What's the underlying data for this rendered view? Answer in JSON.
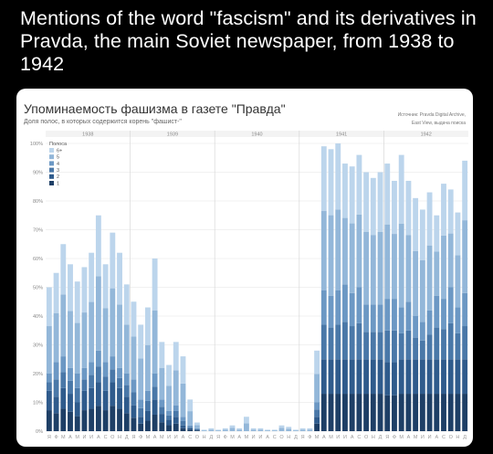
{
  "post": {
    "title": "Mentions of the word \"fascism\" and its derivatives in Pravda, the main Soviet newspaper, from 1938 to 1942"
  },
  "chart_data": {
    "type": "bar",
    "stacked": true,
    "title": "Упоминаемость фашизма в газете \"Правда\"",
    "subtitle": "Доля полос, в которых содержится корень \"фашист-\"",
    "source_line1": "Источник: Pravda Digital Archive,",
    "source_line2": "East View, выдача поиска",
    "legend_title": "Полоса",
    "legend_placement": "top-left",
    "ylim": [
      0,
      100
    ],
    "yticks": [
      "0%",
      "10%",
      "20%",
      "30%",
      "40%",
      "50%",
      "60%",
      "70%",
      "80%",
      "90%",
      "100%"
    ],
    "years": [
      "1938",
      "1939",
      "1940",
      "1941",
      "1942"
    ],
    "month_letters": [
      "Я",
      "Ф",
      "М",
      "А",
      "М",
      "И",
      "И",
      "А",
      "С",
      "О",
      "Н",
      "Д"
    ],
    "series": [
      {
        "name": "1",
        "color": "#1e3f66"
      },
      {
        "name": "2",
        "color": "#2f5b8c"
      },
      {
        "name": "3",
        "color": "#4a78a8"
      },
      {
        "name": "4",
        "color": "#6c98c4"
      },
      {
        "name": "5",
        "color": "#93b7d9"
      },
      {
        "name": "6+",
        "color": "#bcd5ec"
      }
    ],
    "levels": [
      [
        14,
        20,
        50
      ],
      [
        12,
        24,
        55
      ],
      [
        15,
        26,
        65
      ],
      [
        13,
        22,
        58
      ],
      [
        10,
        20,
        52
      ],
      [
        14,
        22,
        57
      ],
      [
        15,
        24,
        62
      ],
      [
        17,
        28,
        75
      ],
      [
        14,
        24,
        58
      ],
      [
        17,
        26,
        69
      ],
      [
        15,
        22,
        62
      ],
      [
        12,
        20,
        51
      ],
      [
        9,
        18,
        45
      ],
      [
        5,
        11,
        37
      ],
      [
        7,
        14,
        43
      ],
      [
        11,
        20,
        60
      ],
      [
        6,
        11,
        31
      ],
      [
        4,
        7,
        23
      ],
      [
        5,
        9,
        31
      ],
      [
        2,
        5,
        26
      ],
      [
        1,
        2,
        11
      ],
      [
        0.5,
        1,
        3
      ],
      [
        0,
        0,
        0.5
      ],
      [
        0,
        0,
        1
      ],
      [
        0,
        0,
        0.5
      ],
      [
        0,
        0,
        1
      ],
      [
        0,
        0,
        2
      ],
      [
        0,
        0,
        1
      ],
      [
        0,
        0,
        5
      ],
      [
        0,
        0,
        1
      ],
      [
        0,
        0,
        1
      ],
      [
        0,
        0,
        0.5
      ],
      [
        0,
        0,
        0.5
      ],
      [
        0,
        0,
        2
      ],
      [
        0,
        0,
        1.5
      ],
      [
        0,
        0,
        0.5
      ],
      [
        0,
        0,
        1
      ],
      [
        0,
        0,
        1
      ],
      [
        5,
        10,
        28
      ],
      [
        25,
        49,
        99
      ],
      [
        25,
        47,
        98
      ],
      [
        25,
        49,
        100
      ],
      [
        25,
        51,
        93
      ],
      [
        25,
        48,
        92
      ],
      [
        25,
        50,
        96
      ],
      [
        25,
        44,
        90
      ],
      [
        25,
        44,
        88
      ],
      [
        25,
        44,
        90
      ],
      [
        24,
        46,
        93
      ],
      [
        24,
        46,
        87
      ],
      [
        25,
        43,
        96
      ],
      [
        25,
        45,
        87
      ],
      [
        25,
        40,
        81
      ],
      [
        25,
        38,
        77
      ],
      [
        25,
        42,
        83
      ],
      [
        25,
        47,
        75
      ],
      [
        25,
        46,
        86
      ],
      [
        25,
        50,
        84
      ],
      [
        25,
        43,
        76
      ],
      [
        25,
        48,
        94
      ]
    ]
  }
}
